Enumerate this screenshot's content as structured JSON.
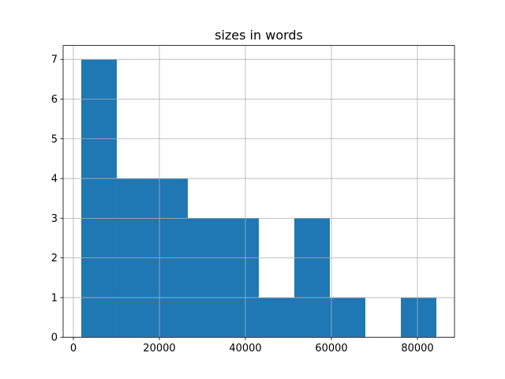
{
  "chart_data": {
    "type": "histogram",
    "title": "sizes in words",
    "bins": [
      1835,
      10092,
      18349,
      26606,
      34863,
      43120,
      51377,
      59634,
      67891,
      76148,
      84405
    ],
    "values": [
      7,
      4,
      4,
      3,
      3,
      1,
      3,
      1,
      0,
      1
    ],
    "color": "#1f77b4",
    "xlim": [
      -2380,
      88620
    ],
    "xticks": [
      0,
      20000,
      40000,
      60000,
      80000
    ],
    "ylim": [
      0,
      7.35
    ],
    "yticks": [
      0,
      1,
      2,
      3,
      4,
      5,
      6,
      7
    ],
    "grid": true
  }
}
